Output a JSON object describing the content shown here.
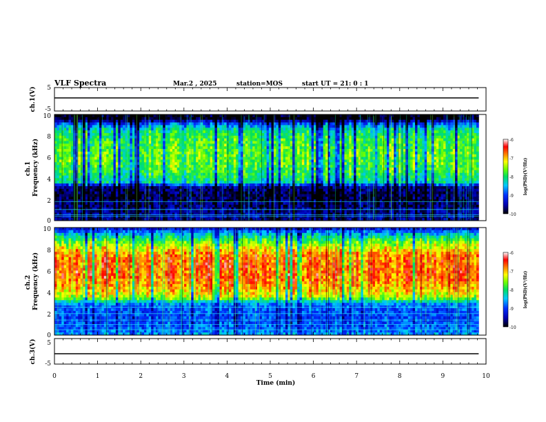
{
  "header": {
    "title": "VLF Spectra",
    "date": "Mar.2 , 2025",
    "station": "station=MOS",
    "start": "start UT = 21: 0 : 1"
  },
  "chart_data": [
    {
      "type": "line",
      "panel": "ch1-waveform",
      "ylabel": "ch.1(V)",
      "ylim": [
        -5,
        5
      ],
      "yticks": [
        "5",
        "-5"
      ],
      "xlim": [
        0,
        10
      ],
      "series": [
        {
          "x": [
            0,
            9.83
          ],
          "y": [
            -1,
            -1
          ]
        }
      ],
      "colors": {
        "trace": "#000000"
      }
    },
    {
      "type": "heatmap",
      "panel": "ch1-spectrogram",
      "ylabel": "ch.1\nFrequency (kHz)",
      "ylim": [
        0,
        10
      ],
      "yticks": [
        "0",
        "2",
        "4",
        "6",
        "8",
        "10"
      ],
      "xlim": [
        0,
        10
      ],
      "data_end_min": 9.83,
      "colorbar": {
        "label": "log(PSD)(V²/Hz)",
        "range": [
          -10,
          -6
        ],
        "ticks": [
          "-6",
          "-7",
          "-8",
          "-9",
          "-10"
        ]
      },
      "profile": {
        "freq_khz": [
          0,
          0.5,
          1.5,
          2.5,
          3.2,
          3.6,
          4.5,
          5.5,
          6.5,
          7.5,
          8.5,
          9.2,
          9.5,
          10
        ],
        "log_psd": [
          -9.6,
          -9.5,
          -9.7,
          -9.8,
          -9.6,
          -8.2,
          -7.9,
          -7.7,
          -7.7,
          -7.8,
          -8.1,
          -9.0,
          -9.9,
          -10
        ]
      },
      "emission_band_khz": [
        3.3,
        9.4
      ],
      "tone_lines_khz": [
        0.4,
        0.55,
        1.05,
        1.8
      ]
    },
    {
      "type": "heatmap",
      "panel": "ch2-spectrogram",
      "ylabel": "ch.2\nFrequency (kHz)",
      "ylim": [
        0,
        10
      ],
      "yticks": [
        "0",
        "2",
        "4",
        "6",
        "8",
        "10"
      ],
      "xlim": [
        0,
        10
      ],
      "data_end_min": 9.83,
      "colorbar": {
        "label": "log(PSD)(V²/Hz)",
        "range": [
          -10,
          -6
        ],
        "ticks": [
          "-6",
          "-7",
          "-8",
          "-9",
          "-10"
        ]
      },
      "profile": {
        "freq_khz": [
          0,
          0.5,
          1.5,
          2.5,
          3.0,
          3.5,
          4.5,
          5.5,
          6.5,
          7.5,
          8.5,
          9.2,
          9.7,
          10
        ],
        "log_psd": [
          -8.6,
          -8.8,
          -9.0,
          -8.9,
          -8.6,
          -7.4,
          -6.9,
          -6.7,
          -6.7,
          -6.8,
          -7.5,
          -8.2,
          -8.9,
          -9.4
        ]
      },
      "emission_band_khz": [
        3.2,
        9.6
      ],
      "tone_lines_khz": [
        0.5,
        1.0,
        1.4,
        2.0,
        2.6
      ]
    },
    {
      "type": "line",
      "panel": "ch3-waveform",
      "ylabel": "ch.3(V)",
      "ylim": [
        -5,
        5
      ],
      "yticks": [
        "5",
        "-5"
      ],
      "xlim": [
        0,
        10
      ],
      "xlabel": "Time (min)",
      "xticks": [
        "0",
        "1",
        "2",
        "3",
        "4",
        "5",
        "6",
        "7",
        "8",
        "9",
        "10"
      ],
      "series": [
        {
          "x": [
            0,
            9.83
          ],
          "y": [
            -1,
            -1
          ]
        }
      ],
      "colors": {
        "trace": "#000000"
      }
    }
  ]
}
